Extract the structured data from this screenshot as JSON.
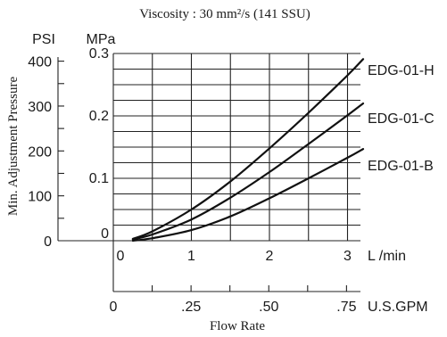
{
  "chart_data": {
    "type": "line",
    "title": "Viscosity : 30 mm²/s (141 SSU)",
    "ylabel": "Min. Adjustment Pressure",
    "xlabel": "Flow Rate",
    "x_unit": "L /min",
    "x_secondary_unit": "U.S.GPM",
    "y_unit_psi": "PSI",
    "y_unit_mpa": "MPa",
    "xlim": [
      0,
      3.2
    ],
    "ylim": [
      0,
      0.3
    ],
    "x_ticks": [
      "0",
      "1",
      "2",
      "3"
    ],
    "x_secondary_ticks": [
      "0",
      ".25",
      ".50",
      ".75"
    ],
    "y_ticks_mpa": [
      "0",
      "0.1",
      "0.2",
      "0.3"
    ],
    "y_ticks_psi": [
      "0",
      "100",
      "200",
      "300",
      "400"
    ],
    "grid": true,
    "series": [
      {
        "name": "EDG-01-H",
        "x": [
          0.25,
          0.5,
          1.0,
          1.5,
          2.0,
          2.5,
          3.0,
          3.2
        ],
        "y": [
          0.003,
          0.015,
          0.05,
          0.095,
          0.148,
          0.205,
          0.265,
          0.291
        ]
      },
      {
        "name": "EDG-01-C",
        "x": [
          0.25,
          0.5,
          1.0,
          1.5,
          2.0,
          2.5,
          3.0,
          3.2
        ],
        "y": [
          0.002,
          0.01,
          0.034,
          0.069,
          0.11,
          0.155,
          0.201,
          0.22
        ]
      },
      {
        "name": "EDG-01-B",
        "x": [
          0.25,
          0.5,
          1.0,
          1.5,
          2.0,
          2.5,
          3.0,
          3.2
        ],
        "y": [
          0.0,
          0.004,
          0.017,
          0.039,
          0.068,
          0.1,
          0.133,
          0.147
        ]
      }
    ]
  }
}
